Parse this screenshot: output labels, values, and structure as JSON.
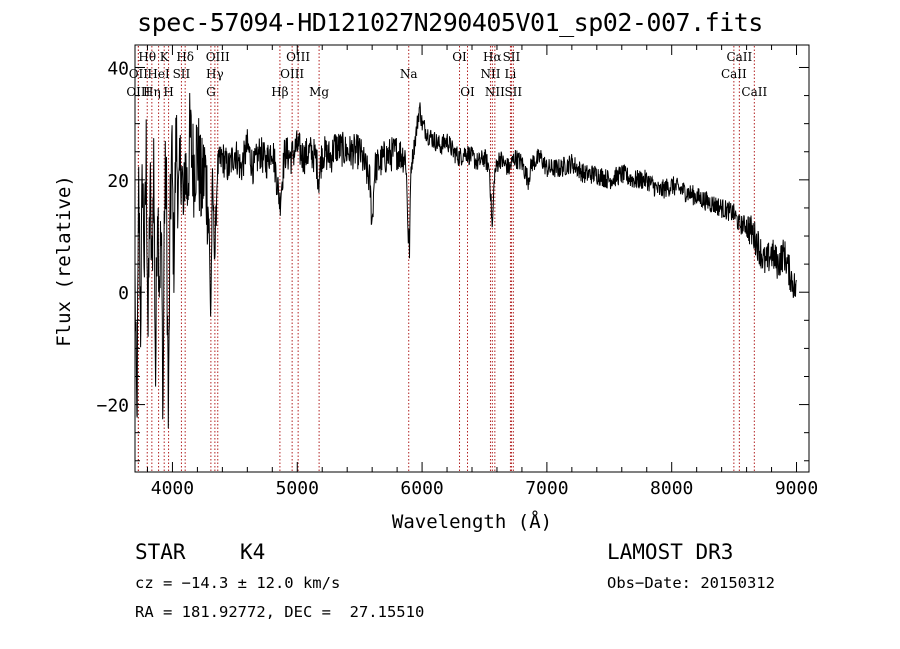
{
  "chart_data": {
    "type": "line",
    "title": "spec-57094-HD121027N290405V01_sp02-007.fits",
    "xlabel": "Wavelength (Å)",
    "ylabel": "Flux (relative)",
    "xlim": [
      3700,
      9100
    ],
    "ylim": [
      -32,
      44
    ],
    "xticks": [
      4000,
      5000,
      6000,
      7000,
      8000,
      9000
    ],
    "yticks": [
      -20,
      0,
      20,
      40
    ],
    "grid": false,
    "line_color": "#000000",
    "marker_color": "#b22222",
    "anchors": [
      [
        3700,
        2
      ],
      [
        3715,
        -25
      ],
      [
        3730,
        18
      ],
      [
        3745,
        -5
      ],
      [
        3760,
        22
      ],
      [
        3775,
        5
      ],
      [
        3790,
        25
      ],
      [
        3805,
        -8
      ],
      [
        3820,
        20
      ],
      [
        3835,
        2
      ],
      [
        3850,
        24
      ],
      [
        3865,
        -15
      ],
      [
        3880,
        18
      ],
      [
        3895,
        3
      ],
      [
        3910,
        10
      ],
      [
        3925,
        -20
      ],
      [
        3935,
        15
      ],
      [
        3950,
        22
      ],
      [
        3968,
        -25
      ],
      [
        3980,
        10
      ],
      [
        3995,
        26
      ],
      [
        4010,
        5
      ],
      [
        4030,
        28
      ],
      [
        4050,
        15
      ],
      [
        4070,
        25
      ],
      [
        4090,
        12
      ],
      [
        4100,
        24
      ],
      [
        4120,
        18
      ],
      [
        4140,
        28
      ],
      [
        4170,
        22
      ],
      [
        4200,
        26
      ],
      [
        4230,
        18
      ],
      [
        4260,
        22
      ],
      [
        4290,
        14
      ],
      [
        4307,
        -5
      ],
      [
        4320,
        20
      ],
      [
        4340,
        6
      ],
      [
        4360,
        22
      ],
      [
        4400,
        24
      ],
      [
        4450,
        22
      ],
      [
        4500,
        25
      ],
      [
        4550,
        22
      ],
      [
        4600,
        26
      ],
      [
        4650,
        22
      ],
      [
        4700,
        25
      ],
      [
        4750,
        23
      ],
      [
        4800,
        26
      ],
      [
        4861,
        16
      ],
      [
        4900,
        25
      ],
      [
        4950,
        24
      ],
      [
        5000,
        26
      ],
      [
        5050,
        24
      ],
      [
        5100,
        25
      ],
      [
        5150,
        24
      ],
      [
        5172,
        20
      ],
      [
        5200,
        25
      ],
      [
        5270,
        24
      ],
      [
        5300,
        26
      ],
      [
        5400,
        25
      ],
      [
        5500,
        25
      ],
      [
        5580,
        20
      ],
      [
        5600,
        12
      ],
      [
        5620,
        22
      ],
      [
        5700,
        24
      ],
      [
        5800,
        25
      ],
      [
        5870,
        24
      ],
      [
        5890,
        10
      ],
      [
        5900,
        8
      ],
      [
        5910,
        22
      ],
      [
        5950,
        28
      ],
      [
        5980,
        33
      ],
      [
        6000,
        30
      ],
      [
        6050,
        28
      ],
      [
        6100,
        27
      ],
      [
        6150,
        26
      ],
      [
        6200,
        27
      ],
      [
        6250,
        25
      ],
      [
        6300,
        24
      ],
      [
        6350,
        25
      ],
      [
        6400,
        24
      ],
      [
        6450,
        23
      ],
      [
        6500,
        24
      ],
      [
        6540,
        22
      ],
      [
        6563,
        11
      ],
      [
        6580,
        21
      ],
      [
        6620,
        24
      ],
      [
        6650,
        23
      ],
      [
        6700,
        22
      ],
      [
        6740,
        24
      ],
      [
        6800,
        23
      ],
      [
        6850,
        20
      ],
      [
        6880,
        23
      ],
      [
        6950,
        24
      ],
      [
        7000,
        22
      ],
      [
        7100,
        22
      ],
      [
        7200,
        23
      ],
      [
        7300,
        21
      ],
      [
        7400,
        21
      ],
      [
        7500,
        20
      ],
      [
        7600,
        21
      ],
      [
        7700,
        20
      ],
      [
        7800,
        20
      ],
      [
        7900,
        18
      ],
      [
        8000,
        19
      ],
      [
        8100,
        18
      ],
      [
        8200,
        17
      ],
      [
        8300,
        16
      ],
      [
        8400,
        15
      ],
      [
        8498,
        14
      ],
      [
        8542,
        12
      ],
      [
        8600,
        12
      ],
      [
        8662,
        10
      ],
      [
        8700,
        8
      ],
      [
        8750,
        5
      ],
      [
        8800,
        7
      ],
      [
        8850,
        5
      ],
      [
        8900,
        7
      ],
      [
        8950,
        3
      ],
      [
        9000,
        0
      ]
    ],
    "lines": [
      {
        "label": "Hθ",
        "wave": 3798,
        "row": 0
      },
      {
        "label": "OII",
        "wave": 3727,
        "row": 1
      },
      {
        "label": "OIII",
        "wave": 3727,
        "row": 2
      },
      {
        "label": "K",
        "wave": 3934,
        "row": 0
      },
      {
        "label": "HeI",
        "wave": 3889,
        "row": 1
      },
      {
        "label": "Hη",
        "wave": 3835,
        "row": 2
      },
      {
        "label": "Hδ",
        "wave": 4102,
        "row": 0
      },
      {
        "label": "SII",
        "wave": 4072,
        "row": 1
      },
      {
        "label": "H",
        "wave": 3969,
        "row": 2
      },
      {
        "label": "OIII",
        "wave": 4363,
        "row": 0
      },
      {
        "label": "Hγ",
        "wave": 4340,
        "row": 1
      },
      {
        "label": "G",
        "wave": 4308,
        "row": 2
      },
      {
        "label": "Hβ",
        "wave": 4861,
        "row": 2
      },
      {
        "label": "OIII",
        "wave": 5007,
        "row": 0
      },
      {
        "label": "OIII",
        "wave": 4959,
        "row": 1
      },
      {
        "label": "Mg",
        "wave": 5175,
        "row": 2
      },
      {
        "label": "Na",
        "wave": 5893,
        "row": 1
      },
      {
        "label": "OI",
        "wave": 6300,
        "row": 0
      },
      {
        "label": "OI",
        "wave": 6364,
        "row": 2
      },
      {
        "label": "Hα",
        "wave": 6563,
        "row": 0
      },
      {
        "label": "NII",
        "wave": 6548,
        "row": 1
      },
      {
        "label": "NII",
        "wave": 6583,
        "row": 2
      },
      {
        "label": "SII",
        "wave": 6716,
        "row": 0
      },
      {
        "label": "Li",
        "wave": 6708,
        "row": 1
      },
      {
        "label": "SII",
        "wave": 6731,
        "row": 2
      },
      {
        "label": "CaII",
        "wave": 8542,
        "row": 0
      },
      {
        "label": "CaII",
        "wave": 8498,
        "row": 1
      },
      {
        "label": "CaII",
        "wave": 8662,
        "row": 2
      }
    ]
  },
  "info": {
    "object_class": "STAR",
    "subclass": "K4",
    "survey": "LAMOST DR3",
    "redshift_line": "cz = −14.3 ± 12.0 km/s",
    "obs_date_line": "Obs−Date: 20150312",
    "coords_line": "RA = 181.92772, DEC =  27.15510"
  }
}
